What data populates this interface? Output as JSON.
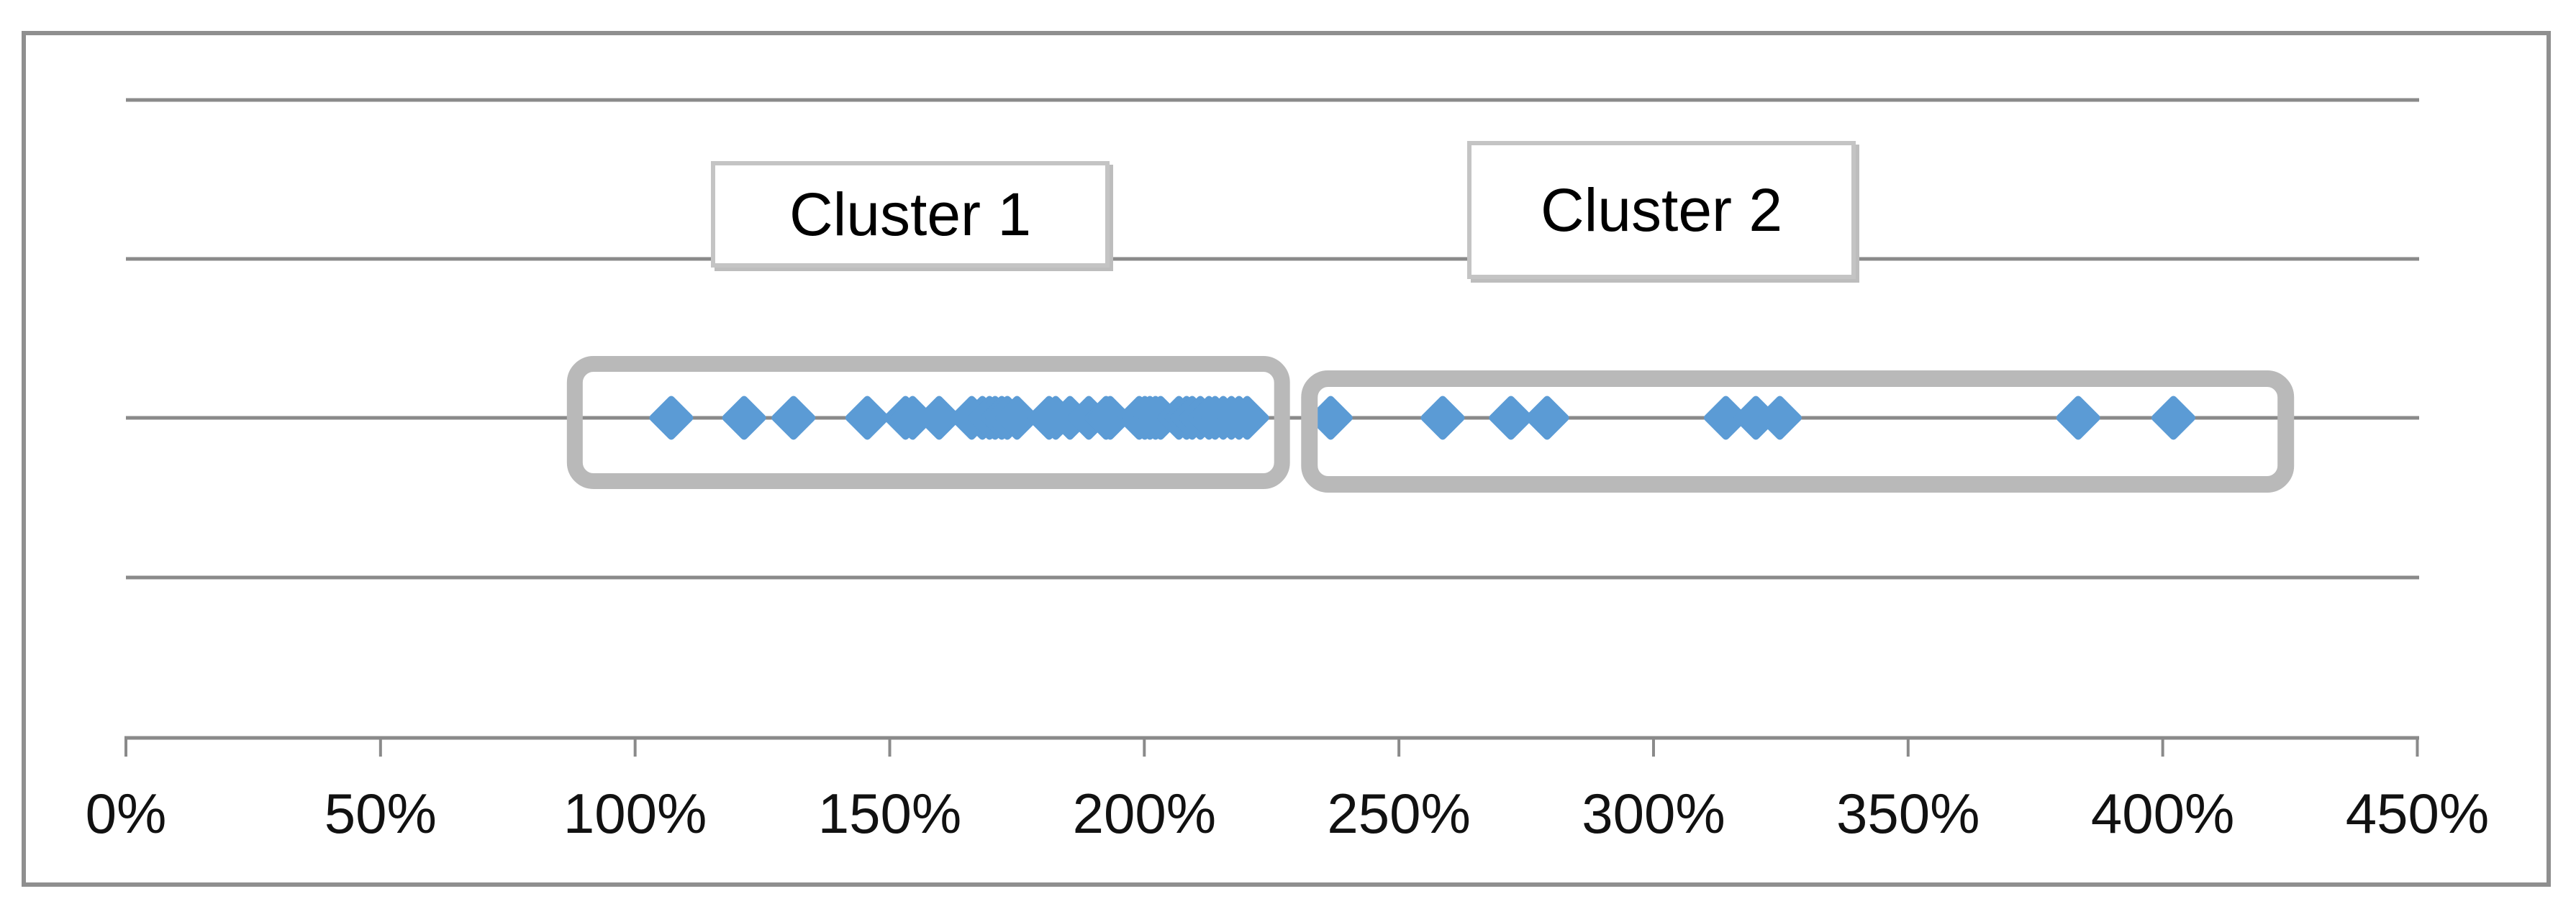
{
  "chart_data": {
    "type": "scatter",
    "title": "",
    "xlabel": "",
    "ylabel": "",
    "legend": "none",
    "grid": "horizontal",
    "y_gridline_count": 4,
    "xlim_percent": [
      0,
      450
    ],
    "x_tick_labels": [
      "0%",
      "50%",
      "100%",
      "150%",
      "200%",
      "250%",
      "300%",
      "350%",
      "400%",
      "450%"
    ],
    "x_tick_values": [
      0,
      50,
      100,
      150,
      200,
      250,
      300,
      350,
      400,
      450
    ],
    "marker": {
      "shape": "diamond",
      "color": "#5B9BD5"
    },
    "series": [
      {
        "name": "Cluster 1",
        "values_percent": [
          107.1,
          121.4,
          131.1,
          145.6,
          153.1,
          154.5,
          159.7,
          166.1,
          168.2,
          169.6,
          170.7,
          172.0,
          173.1,
          175.0,
          181.3,
          182.6,
          185.4,
          189.1,
          192.5,
          193.3,
          199.0,
          200.1,
          201.1,
          202.2,
          203.2,
          206.8,
          208.3,
          209.4,
          211.0,
          212.7,
          213.9,
          215.5,
          217.1,
          218.6,
          220.2
        ]
      },
      {
        "name": "Cluster 2",
        "values_percent": [
          236.6,
          258.6,
          272.0,
          279.1,
          314.2,
          320.1,
          324.8,
          383.4,
          402.1
        ]
      }
    ],
    "annotations": [
      {
        "label": "Cluster 1"
      },
      {
        "label": "Cluster 2"
      }
    ],
    "highlight_boxes": [
      {
        "label": "Cluster 1",
        "x_range_percent": [
          86.6,
          228.6
        ]
      },
      {
        "label": "Cluster 2",
        "x_range_percent": [
          230.8,
          425.8
        ]
      }
    ]
  },
  "colors": {
    "marker": "#5B9BD5",
    "gridline": "#8a8a8a",
    "axis": "#8a8a8a",
    "chart_border": "#8f8f8f",
    "cluster_outline": "#b9b9b9",
    "label_box_border": "#c4c4c4",
    "text": "#111111",
    "background": "#ffffff"
  }
}
